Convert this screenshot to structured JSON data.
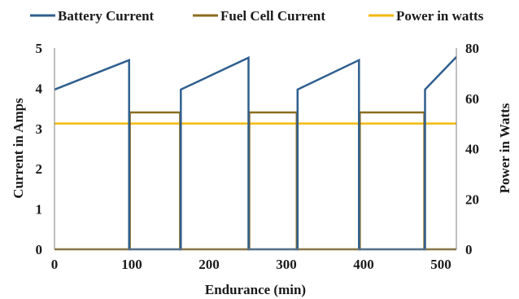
{
  "chart_data": {
    "type": "line",
    "title": "",
    "xlabel": "Endurance (min)",
    "ylabel_left": "Current in Amps",
    "ylabel_right": "Power in Watts",
    "xlim": [
      0,
      520
    ],
    "ylim_left": [
      0,
      5
    ],
    "ylim_right": [
      0,
      80
    ],
    "x_ticks": [
      0,
      100,
      200,
      300,
      400,
      500
    ],
    "y_left_ticks": [
      0,
      1,
      2,
      3,
      4,
      5
    ],
    "y_right_ticks": [
      0,
      20,
      40,
      60,
      80
    ],
    "grid": false,
    "legend_position": "top",
    "series": [
      {
        "name": "Battery Current",
        "axis": "left",
        "color": "#2f5f8e",
        "x": [
          0,
          96.5,
          96.5,
          163.5,
          163.5,
          251,
          251,
          314.5,
          314.5,
          394,
          394,
          479.5,
          479.5,
          520
        ],
        "y": [
          3.97,
          4.7,
          0,
          0,
          3.97,
          4.76,
          0,
          0,
          3.97,
          4.7,
          0,
          0,
          3.97,
          4.78
        ]
      },
      {
        "name": "Fuel Cell Current",
        "axis": "left",
        "color": "#8c6d1f",
        "x": [
          0,
          97.5,
          97.5,
          162.5,
          162.5,
          252,
          252,
          313.5,
          313.5,
          395,
          395,
          478.5,
          478.5,
          520
        ],
        "y": [
          0,
          0,
          3.4,
          3.4,
          0,
          0,
          3.4,
          3.4,
          0,
          0,
          3.4,
          3.4,
          0,
          0
        ]
      },
      {
        "name": "Power in watts",
        "axis": "right",
        "color": "#f2b90f",
        "x": [
          0,
          520
        ],
        "y": [
          50,
          50
        ]
      }
    ]
  }
}
